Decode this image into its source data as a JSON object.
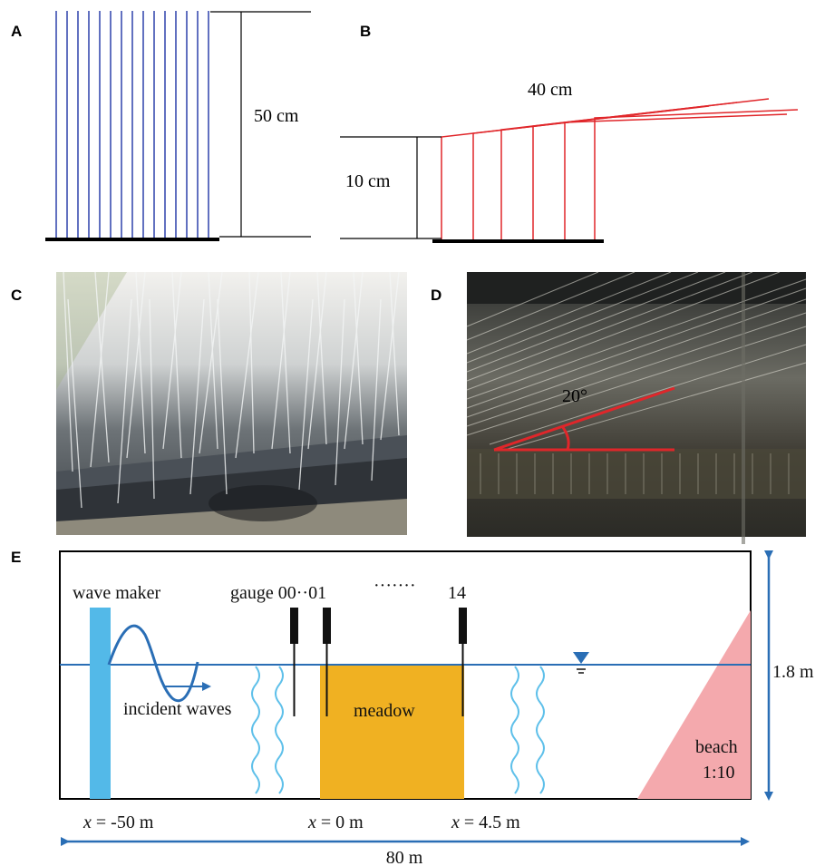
{
  "panels": {
    "a": {
      "letter": "A",
      "height_label": "50 cm"
    },
    "b": {
      "letter": "B",
      "length_label": "40 cm",
      "height_label": "10 cm"
    },
    "c": {
      "letter": "C"
    },
    "d": {
      "letter": "D",
      "angle_label": "20°"
    },
    "e": {
      "letter": "E",
      "wave_maker": "wave maker",
      "gauge_label": "gauge 00",
      "gauge_sep": "··",
      "gauge_01": "01",
      "gauge_dots": "·······",
      "gauge_14": "14",
      "incident_waves": "incident waves",
      "meadow": "meadow",
      "beach": "beach",
      "beach_slope": "1:10",
      "depth": "1.8 m",
      "x_var": "x",
      "x_left": " = -50 m",
      "x_zero": " = 0 m",
      "x_right": " = 4.5 m",
      "total_length": "80 m"
    }
  },
  "colors": {
    "stem_blue": "#3a4db0",
    "stem_red": "#e0262a",
    "water_line": "#2a6eb5",
    "wave_maker": "#53b9e8",
    "meadow": "#f0b122",
    "beach": "#f4a9ad",
    "wavy_cut": "#5fc0ea",
    "dim_arrow": "#2a6eb5"
  }
}
